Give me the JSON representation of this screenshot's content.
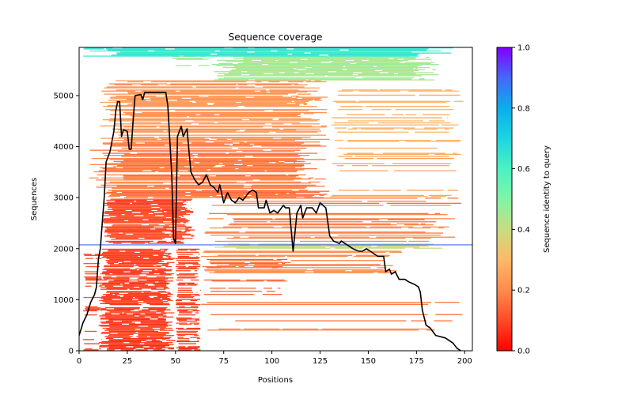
{
  "chart_data": {
    "type": "heatmap",
    "title": "Sequence coverage",
    "xlabel": "Positions",
    "ylabel": "Sequences",
    "xlim": [
      0,
      204
    ],
    "ylim": [
      0,
      5944
    ],
    "xticks": [
      0,
      25,
      50,
      75,
      100,
      125,
      150,
      175,
      200
    ],
    "yticks": [
      0,
      1000,
      2000,
      3000,
      4000,
      5000
    ],
    "grid": false,
    "colorbar": {
      "label": "Sequence identity to query",
      "range": [
        0.0,
        1.0
      ],
      "ticks": [
        "0.0",
        "0.2",
        "0.4",
        "0.6",
        "0.8",
        "1.0"
      ],
      "colormap": "rainbow_r",
      "stops": [
        {
          "v": 0.0,
          "color": "#ff0000"
        },
        {
          "v": 0.1,
          "color": "#ff4a26"
        },
        {
          "v": 0.2,
          "color": "#ff8b4d"
        },
        {
          "v": 0.3,
          "color": "#fdb869"
        },
        {
          "v": 0.4,
          "color": "#c8dd81"
        },
        {
          "v": 0.5,
          "color": "#80f5a6"
        },
        {
          "v": 0.6,
          "color": "#4bf2c3"
        },
        {
          "v": 0.7,
          "color": "#1dd5df"
        },
        {
          "v": 0.8,
          "color": "#0aaeec"
        },
        {
          "v": 0.9,
          "color": "#4667f8"
        },
        {
          "v": 1.0,
          "color": "#8000ff"
        }
      ]
    },
    "coverage_blocks": [
      {
        "y0": 0,
        "y1": 2000,
        "x0": 10,
        "x1": 50,
        "identity": 0.08,
        "density": 0.92
      },
      {
        "y0": 0,
        "y1": 2000,
        "x0": 50,
        "x1": 63,
        "identity": 0.09,
        "density": 0.6
      },
      {
        "y0": 0,
        "y1": 2000,
        "x0": 2,
        "x1": 12,
        "identity": 0.1,
        "density": 0.3
      },
      {
        "y0": 0,
        "y1": 1100,
        "x0": 63,
        "x1": 200,
        "identity": 0.18,
        "density": 0.12
      },
      {
        "y0": 1100,
        "y1": 2000,
        "x0": 63,
        "x1": 110,
        "identity": 0.14,
        "density": 0.2
      },
      {
        "y0": 1500,
        "y1": 2000,
        "x0": 63,
        "x1": 170,
        "identity": 0.2,
        "density": 0.55
      },
      {
        "y0": 2000,
        "y1": 2100,
        "x0": 68,
        "x1": 190,
        "identity": 0.4,
        "density": 0.95
      },
      {
        "y0": 2100,
        "y1": 3000,
        "x0": 12,
        "x1": 60,
        "identity": 0.1,
        "density": 0.9
      },
      {
        "y0": 2100,
        "y1": 3000,
        "x0": 60,
        "x1": 200,
        "identity": 0.18,
        "density": 0.35
      },
      {
        "y0": 3000,
        "y1": 4100,
        "x0": 5,
        "x1": 130,
        "identity": 0.17,
        "density": 0.85
      },
      {
        "y0": 3000,
        "y1": 4100,
        "x0": 130,
        "x1": 200,
        "identity": 0.26,
        "density": 0.3
      },
      {
        "y0": 4100,
        "y1": 5300,
        "x0": 10,
        "x1": 130,
        "identity": 0.22,
        "density": 0.85
      },
      {
        "y0": 4100,
        "y1": 5300,
        "x0": 130,
        "x1": 200,
        "identity": 0.28,
        "density": 0.4
      },
      {
        "y0": 5300,
        "y1": 5780,
        "x0": 68,
        "x1": 188,
        "identity": 0.45,
        "density": 0.95
      },
      {
        "y0": 5500,
        "y1": 5780,
        "x0": 48,
        "x1": 68,
        "identity": 0.46,
        "density": 0.3
      },
      {
        "y0": 5780,
        "y1": 5944,
        "x0": 2,
        "x1": 195,
        "identity": 0.64,
        "density": 0.95
      }
    ],
    "reference_line": {
      "y": 2075,
      "x0": 0,
      "x1": 204,
      "identity": 0.9
    },
    "series": [
      {
        "name": "coverage",
        "color": "#000000",
        "x": [
          0,
          2,
          4,
          6,
          8,
          9,
          10,
          11,
          12,
          13,
          14,
          16,
          18,
          19,
          20,
          21,
          22,
          23,
          25,
          26,
          27,
          28,
          29,
          32,
          33,
          34,
          45,
          46,
          48,
          49,
          50,
          51,
          53,
          54,
          56,
          57,
          58,
          60,
          62,
          64,
          66,
          68,
          70,
          72,
          73,
          75,
          77,
          79,
          81,
          83,
          85,
          88,
          90,
          92,
          93,
          96,
          97,
          99,
          101,
          103,
          106,
          107,
          109,
          111,
          113,
          115,
          116,
          118,
          121,
          123,
          125,
          128,
          130,
          132,
          135,
          136,
          138,
          140,
          142,
          145,
          147,
          149,
          151,
          155,
          158,
          159,
          161,
          162,
          164,
          166,
          169,
          171,
          174,
          176,
          177,
          178,
          180,
          182,
          185,
          190,
          194,
          196,
          198
        ],
        "y": [
          300,
          550,
          700,
          950,
          1100,
          1250,
          1800,
          2000,
          2500,
          3000,
          3700,
          3900,
          4300,
          4700,
          4880,
          4880,
          4200,
          4330,
          4300,
          3950,
          3950,
          4500,
          5000,
          5020,
          4920,
          5060,
          5060,
          4800,
          3500,
          2200,
          2100,
          4200,
          4400,
          4200,
          4350,
          3900,
          3500,
          3350,
          3250,
          3300,
          3450,
          3250,
          3200,
          3100,
          3250,
          2900,
          3100,
          2950,
          2900,
          3000,
          2950,
          3100,
          3150,
          3100,
          2800,
          2800,
          2950,
          2700,
          2750,
          2700,
          2850,
          2800,
          2800,
          1950,
          2700,
          2850,
          2600,
          2800,
          2800,
          2700,
          2900,
          2800,
          2250,
          2150,
          2100,
          2150,
          2100,
          2050,
          2000,
          1950,
          1950,
          2000,
          1950,
          1850,
          1850,
          1550,
          1600,
          1500,
          1550,
          1400,
          1400,
          1350,
          1300,
          1250,
          1150,
          800,
          500,
          450,
          300,
          250,
          150,
          50,
          0
        ]
      }
    ]
  }
}
